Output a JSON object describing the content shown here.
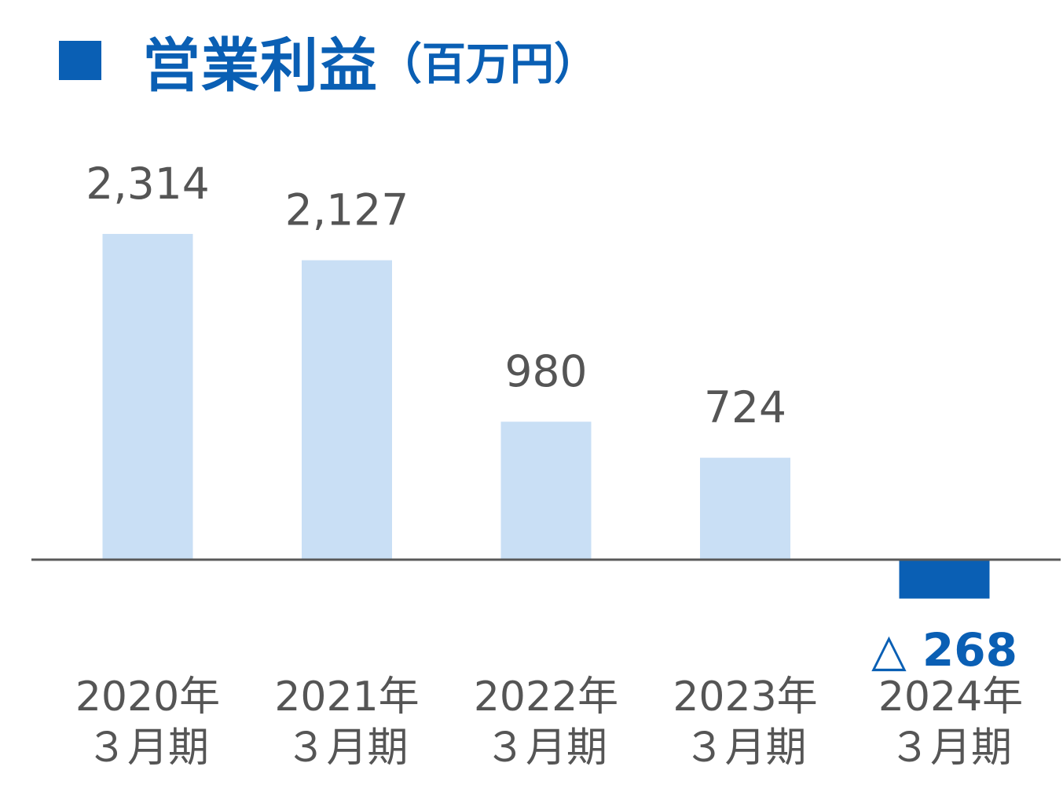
{
  "title": {
    "marker": "■",
    "text": "営業利益",
    "unit": "（百万円）"
  },
  "colors": {
    "accent": "#0a5fb4",
    "bar": "#c9dff5",
    "negative_bar": "#0a5fb4",
    "axis": "#595959",
    "label": "#555555"
  },
  "chart_data": {
    "type": "bar",
    "categories": [
      [
        "2020年",
        "３月期"
      ],
      [
        "2021年",
        "３月期"
      ],
      [
        "2022年",
        "３月期"
      ],
      [
        "2023年",
        "３月期"
      ],
      [
        "2024年",
        "３月期"
      ]
    ],
    "values": [
      2314,
      2127,
      980,
      724,
      -268
    ],
    "value_labels": [
      "2,314",
      "2,127",
      "980",
      "724",
      "△ 268"
    ],
    "title": "営業利益（百万円）",
    "xlabel": "",
    "ylabel": "",
    "grid": false,
    "legend": "none"
  }
}
